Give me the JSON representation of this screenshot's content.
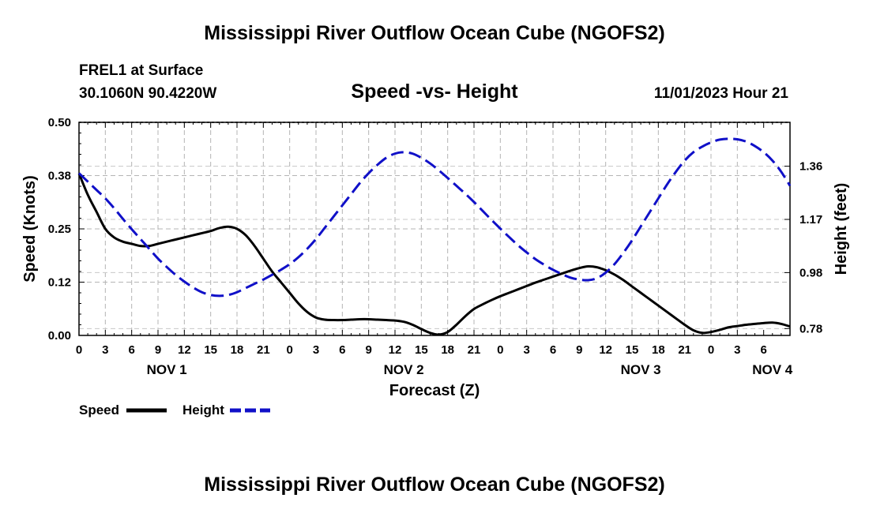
{
  "page": {
    "title_top": "Mississippi River Outflow Ocean Cube (NGOFS2)",
    "title_bottom": "Mississippi River Outflow Ocean Cube (NGOFS2)"
  },
  "chart_data": {
    "type": "line",
    "title": "Speed -vs- Height",
    "station": "FREL1 at Surface",
    "location": "30.1060N  90.4220W",
    "run_time": "11/01/2023 Hour 21",
    "xlabel": "Forecast (Z)",
    "ylabel_left": "Speed (Knots)",
    "ylabel_right": "Height (feet)",
    "x_range_hours": [
      0,
      81
    ],
    "x_tick_labels": [
      "0",
      "3",
      "6",
      "9",
      "12",
      "15",
      "18",
      "21",
      "0",
      "3",
      "6",
      "9",
      "12",
      "15",
      "18",
      "21",
      "0",
      "3",
      "6",
      "9",
      "12",
      "15",
      "18",
      "21",
      "0",
      "3",
      "6"
    ],
    "day_labels": [
      {
        "label": "NOV 1",
        "hour": 10
      },
      {
        "label": "NOV 2",
        "hour": 37
      },
      {
        "label": "NOV 3",
        "hour": 64
      },
      {
        "label": "NOV 4",
        "hour": 79
      }
    ],
    "left_axis": {
      "min": 0,
      "max": 0.5,
      "ticks": [
        0.0,
        0.125,
        0.25,
        0.375,
        0.5
      ],
      "tick_labels": [
        "0.00",
        "0.12",
        "0.25",
        "0.38",
        "0.50"
      ]
    },
    "right_axis": {
      "min": 0.7556,
      "max": 1.5167,
      "ticks": [
        0.78,
        0.98,
        1.17,
        1.36
      ],
      "tick_labels": [
        "0.78",
        "0.98",
        "1.17",
        "1.36"
      ]
    },
    "series": [
      {
        "name": "Speed",
        "axis": "left",
        "color": "#000000",
        "style": "solid",
        "x": [
          0,
          1,
          2,
          3,
          4,
          5,
          6,
          7,
          8,
          9,
          10,
          11,
          12,
          13,
          14,
          15,
          16,
          17,
          18,
          19,
          20,
          21,
          22,
          23,
          24,
          25,
          26,
          27,
          28,
          29,
          30,
          31,
          32,
          33,
          34,
          35,
          36,
          37,
          38,
          39,
          40,
          41,
          42,
          43,
          44,
          45,
          46,
          47,
          48,
          49,
          50,
          51,
          52,
          53,
          54,
          55,
          56,
          57,
          58,
          59,
          60,
          61,
          62,
          63,
          64,
          65,
          66,
          67,
          68,
          69,
          70,
          71,
          72,
          73,
          74,
          75,
          76,
          77,
          78,
          79,
          80,
          81
        ],
        "values": [
          0.38,
          0.33,
          0.29,
          0.25,
          0.23,
          0.22,
          0.215,
          0.21,
          0.21,
          0.215,
          0.22,
          0.225,
          0.23,
          0.235,
          0.24,
          0.245,
          0.252,
          0.255,
          0.25,
          0.235,
          0.21,
          0.18,
          0.15,
          0.125,
          0.1,
          0.075,
          0.055,
          0.042,
          0.037,
          0.036,
          0.036,
          0.037,
          0.038,
          0.038,
          0.037,
          0.036,
          0.035,
          0.032,
          0.025,
          0.015,
          0.006,
          0.002,
          0.008,
          0.025,
          0.045,
          0.062,
          0.073,
          0.083,
          0.092,
          0.1,
          0.108,
          0.116,
          0.124,
          0.131,
          0.138,
          0.145,
          0.152,
          0.158,
          0.162,
          0.16,
          0.153,
          0.143,
          0.13,
          0.115,
          0.1,
          0.085,
          0.07,
          0.055,
          0.04,
          0.025,
          0.012,
          0.006,
          0.008,
          0.013,
          0.019,
          0.022,
          0.025,
          0.027,
          0.029,
          0.03,
          0.027,
          0.021
        ]
      },
      {
        "name": "Height",
        "axis": "right",
        "color": "#1010c8",
        "style": "dashed",
        "x": [
          0,
          1,
          2,
          3,
          4,
          5,
          6,
          7,
          8,
          9,
          10,
          11,
          12,
          13,
          14,
          15,
          16,
          17,
          18,
          19,
          20,
          21,
          22,
          23,
          24,
          25,
          26,
          27,
          28,
          29,
          30,
          31,
          32,
          33,
          34,
          35,
          36,
          37,
          38,
          39,
          40,
          41,
          42,
          43,
          44,
          45,
          46,
          47,
          48,
          49,
          50,
          51,
          52,
          53,
          54,
          55,
          56,
          57,
          58,
          59,
          60,
          61,
          62,
          63,
          64,
          65,
          66,
          67,
          68,
          69,
          70,
          71,
          72,
          73,
          74,
          75,
          76,
          77,
          78,
          79,
          80,
          81
        ],
        "values": [
          1.335,
          1.305,
          1.275,
          1.245,
          1.21,
          1.172,
          1.135,
          1.1,
          1.065,
          1.03,
          1.0,
          0.972,
          0.948,
          0.927,
          0.91,
          0.9,
          0.897,
          0.9,
          0.91,
          0.925,
          0.94,
          0.955,
          0.972,
          0.99,
          1.01,
          1.035,
          1.065,
          1.1,
          1.14,
          1.18,
          1.22,
          1.26,
          1.3,
          1.335,
          1.365,
          1.39,
          1.405,
          1.41,
          1.405,
          1.39,
          1.37,
          1.345,
          1.318,
          1.29,
          1.262,
          1.232,
          1.2,
          1.168,
          1.137,
          1.107,
          1.078,
          1.052,
          1.028,
          1.008,
          0.99,
          0.975,
          0.962,
          0.955,
          0.953,
          0.96,
          0.98,
          1.01,
          1.05,
          1.095,
          1.145,
          1.195,
          1.245,
          1.295,
          1.34,
          1.38,
          1.41,
          1.43,
          1.445,
          1.455,
          1.458,
          1.456,
          1.448,
          1.432,
          1.41,
          1.38,
          1.34,
          1.29
        ]
      }
    ],
    "legend": [
      {
        "label": "Speed",
        "color": "#000000",
        "style": "solid"
      },
      {
        "label": "Height",
        "color": "#1010c8",
        "style": "dashed"
      }
    ],
    "legend_position": "bottom-left",
    "grid": true
  }
}
